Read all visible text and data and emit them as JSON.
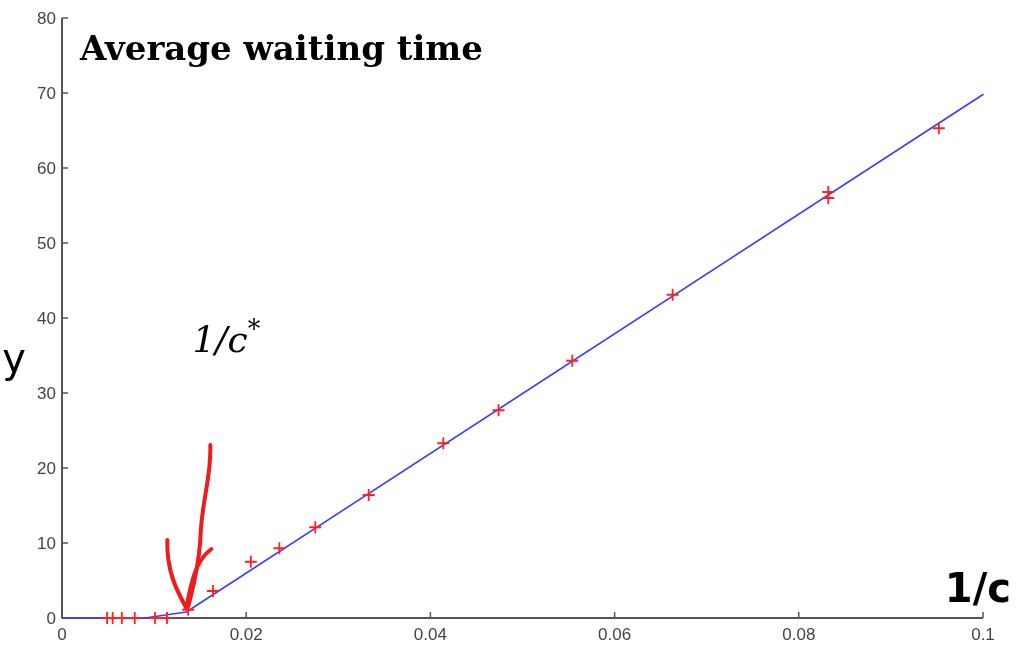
{
  "chart_data": {
    "type": "scatter",
    "title": "Average waiting time",
    "xlabel": "1/c",
    "ylabel": "y",
    "xlim": [
      0,
      0.1
    ],
    "ylim": [
      0,
      80
    ],
    "xticks": [
      0,
      0.02,
      0.04,
      0.06,
      0.08,
      0.1
    ],
    "yticks": [
      0,
      10,
      20,
      30,
      40,
      50,
      60,
      70,
      80
    ],
    "grid": false,
    "series": [
      {
        "type": "line",
        "color": "#3c3cff",
        "marker": "none",
        "line_style": "solid",
        "x": [
          0,
          0.009,
          0.0135,
          0.1
        ],
        "values": [
          0,
          0,
          0.8,
          69.8
        ]
      },
      {
        "color": "#ff2020",
        "marker": "cross",
        "x": [
          0.0049,
          0.0055,
          0.0065,
          0.0079,
          0.0101,
          0.0114,
          0.0137,
          0.0164,
          0.0205,
          0.0236,
          0.0275,
          0.0333,
          0.0414,
          0.0474,
          0.0554,
          0.0663,
          0.0832,
          0.0832,
          0.0952
        ],
        "values": [
          0,
          0,
          0,
          0,
          0,
          0,
          1.1,
          3.6,
          7.5,
          9.3,
          12.1,
          16.4,
          23.3,
          27.7,
          34.3,
          43.1,
          56.0,
          56.8,
          65.3
        ]
      }
    ],
    "annotations": [
      "1/c$^{*}$"
    ]
  }
}
